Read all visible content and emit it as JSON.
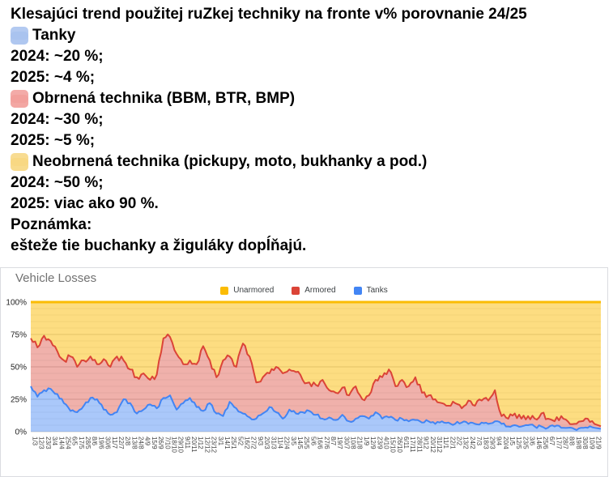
{
  "post": {
    "title": "Klesajúci trend použitej ruZkej techniky na fronte v% porovnanie 24/25",
    "items": [
      {
        "icon": "blue-square-emoji",
        "color": "#A9C3EF",
        "label": "Tanky",
        "line1": "2024: ~20 %;",
        "line2": "2025: ~4 %;"
      },
      {
        "icon": "red-square-emoji",
        "color": "#F2A09C",
        "label": "Obrnená technika (BBM, BTR, BMP)",
        "line1": "2024: ~30 %;",
        "line2": "2025: ~5 %;"
      },
      {
        "icon": "yellow-square-emoji",
        "color": "#F8D883",
        "label": "Neobrnená technika (pickupy, moto, bukhanky a pod.)",
        "line1": "2024: ~50 %;",
        "line2": "2025: viac ako 90 %."
      }
    ],
    "note_label": "Poznámka:",
    "note_text": "ešteže tie buchanky a žiguláky dopĺňajú."
  },
  "chart": {
    "title": "Vehicle Losses",
    "legend": [
      {
        "label": "Unarmored",
        "color": "#FBBC04"
      },
      {
        "label": "Armored",
        "color": "#DB4437"
      },
      {
        "label": "Tanks",
        "color": "#4285F4"
      }
    ],
    "y_ticks": [
      "100%",
      "75%",
      "50%",
      "25%",
      "0%"
    ]
  },
  "chart_data": {
    "type": "area",
    "stacked": true,
    "title": "Vehicle Losses",
    "xlabel": "",
    "ylabel": "",
    "ylim": [
      0,
      100
    ],
    "grid": {
      "major_step": 25,
      "minor_step": 5
    },
    "legend_position": "top-center",
    "x_labels": [
      "1/3",
      "12/3",
      "23/3",
      "3/4",
      "14/4",
      "25/4",
      "6/5",
      "17/5",
      "28/5",
      "8/6",
      "19/6",
      "30/6",
      "11/7",
      "22/7",
      "2/8",
      "13/8",
      "24/8",
      "4/9",
      "15/9",
      "26/9",
      "7/10",
      "18/10",
      "29/10",
      "9/11",
      "20/11",
      "1/12",
      "12/12",
      "23/12",
      "3/1",
      "14/1",
      "25/1",
      "5/2",
      "16/2",
      "27/2",
      "9/3",
      "20/3",
      "31/3",
      "11/4",
      "22/4",
      "3/5",
      "14/5",
      "25/5",
      "5/6",
      "16/6",
      "27/6",
      "8/7",
      "19/7",
      "30/7",
      "10/8",
      "21/8",
      "1/9",
      "12/9",
      "23/9",
      "4/10",
      "15/10",
      "26/10",
      "6/11",
      "17/11",
      "28/11",
      "9/12",
      "20/12",
      "31/12",
      "11/1",
      "22/1",
      "2/2",
      "13/2",
      "24/2",
      "7/3",
      "18/3",
      "29/3",
      "9/4",
      "20/4",
      "1/5",
      "12/5",
      "23/5",
      "3/6",
      "14/6",
      "25/6",
      "6/7",
      "17/7",
      "28/7",
      "8/8",
      "19/8",
      "30/8",
      "10/9",
      "21/9"
    ],
    "series": [
      {
        "name": "Tanks",
        "line_color": "#4285F4",
        "fill_color": "rgba(66,133,244,0.45)",
        "values": [
          35,
          27,
          32,
          33,
          29,
          22,
          16,
          15,
          20,
          26,
          25,
          17,
          13,
          15,
          25,
          22,
          14,
          17,
          21,
          18,
          26,
          28,
          17,
          22,
          26,
          19,
          16,
          22,
          14,
          12,
          23,
          18,
          14,
          11,
          10,
          14,
          19,
          15,
          10,
          17,
          14,
          15,
          16,
          13,
          10,
          11,
          9,
          13,
          8,
          10,
          12,
          10,
          15,
          10,
          11,
          9,
          10,
          8,
          9,
          7,
          8,
          6,
          8,
          7,
          6,
          7,
          6,
          6,
          7,
          6,
          8,
          6,
          4,
          5,
          4,
          5,
          4,
          4,
          3,
          4,
          3,
          3,
          2,
          3,
          3,
          3
        ]
      },
      {
        "name": "Armored",
        "line_color": "#DB4437",
        "fill_color": "rgba(219,68,55,0.42)",
        "values": [
          37,
          38,
          42,
          37,
          33,
          33,
          42,
          35,
          35,
          32,
          27,
          39,
          37,
          43,
          30,
          26,
          28,
          28,
          19,
          26,
          46,
          45,
          43,
          30,
          29,
          33,
          50,
          33,
          28,
          43,
          35,
          32,
          54,
          47,
          28,
          28,
          26,
          35,
          35,
          31,
          32,
          25,
          22,
          23,
          30,
          21,
          21,
          21,
          20,
          25,
          13,
          18,
          25,
          32,
          37,
          26,
          30,
          27,
          33,
          23,
          20,
          19,
          14,
          13,
          16,
          11,
          18,
          14,
          17,
          18,
          24,
          6,
          6,
          9,
          6,
          7,
          6,
          10,
          7,
          4,
          9,
          5,
          4,
          5,
          7,
          3
        ]
      },
      {
        "name": "Unarmored",
        "line_color": "#FBBC04",
        "fill_color": "rgba(251,188,4,0.5)",
        "values": [
          28,
          35,
          26,
          30,
          38,
          45,
          42,
          50,
          45,
          42,
          48,
          44,
          50,
          42,
          45,
          52,
          58,
          55,
          60,
          56,
          28,
          27,
          40,
          48,
          45,
          48,
          34,
          45,
          58,
          45,
          42,
          50,
          32,
          42,
          62,
          58,
          55,
          50,
          55,
          52,
          54,
          60,
          62,
          64,
          60,
          68,
          70,
          66,
          72,
          65,
          75,
          72,
          60,
          58,
          52,
          65,
          60,
          65,
          58,
          70,
          72,
          75,
          78,
          80,
          78,
          82,
          76,
          80,
          76,
          76,
          68,
          88,
          90,
          86,
          90,
          88,
          90,
          86,
          90,
          92,
          88,
          92,
          94,
          92,
          90,
          94
        ]
      }
    ]
  }
}
